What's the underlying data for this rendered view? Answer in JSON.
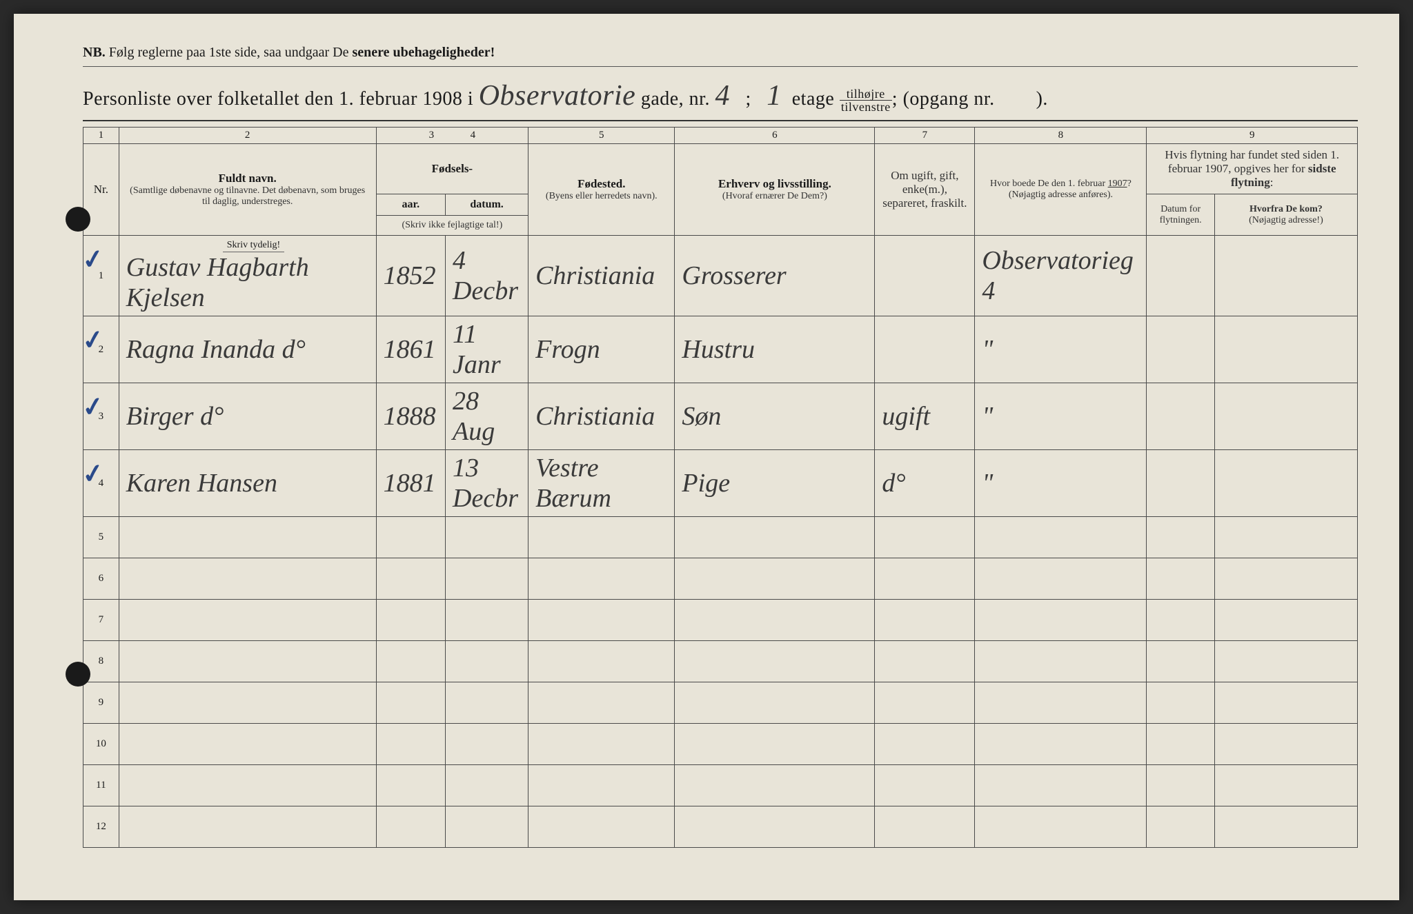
{
  "nb": {
    "prefix": "NB.",
    "text1": "Følg reglerne paa 1ste side, saa undgaar De",
    "text2": "senere ubehageligheder!"
  },
  "title": {
    "t1": "Personliste over folketallet den 1. februar 1908 i",
    "gade_hand": "Observatorie",
    "t2": "gade, nr.",
    "nr_hand": "4",
    "t3": ";",
    "etage_hand": "1",
    "t4": "etage",
    "frac_top": "tilhøjre",
    "frac_bot": "tilvenstre",
    "t5": "; (opgang nr.",
    "opgang_hand": "",
    "t6": ")."
  },
  "colnums": [
    "1",
    "2",
    "3",
    "4",
    "5",
    "6",
    "7",
    "8",
    "9"
  ],
  "headers": {
    "nr": "Nr.",
    "navn_main": "Fuldt navn.",
    "navn_sub": "(Samtlige døbenavne og tilnavne. Det døbenavn, som bruges til daglig, understreges.",
    "fodsels": "Fødsels-",
    "aar": "aar.",
    "datum": "datum.",
    "fodsels_sub": "(Skriv ikke fejlagtige tal!)",
    "fodested": "Fødested.",
    "fodested_sub": "(Byens eller herredets navn).",
    "erhverv": "Erhverv og livsstilling.",
    "erhverv_sub": "(Hvoraf ernærer De Dem?)",
    "gift": "Om ugift, gift, enke(m.), separeret, fraskilt.",
    "hvor1907": "Hvor boede De den 1. februar 1907?",
    "hvor1907_sub": "(Nøjagtig adresse anføres).",
    "flytning_top": "Hvis flytning har fundet sted siden 1. februar 1907, opgives her for sidste flytning:",
    "flyt_datum": "Datum for flytningen.",
    "hvorfra": "Hvorfra De kom?",
    "hvorfra_sub": "(Nøjagtig adresse!)",
    "skriv_tydelig": "Skriv tydelig!"
  },
  "rows": [
    {
      "nr": "1",
      "check": "✓",
      "navn": "Gustav Hagbarth Kjelsen",
      "aar": "1852",
      "datum": "4 Decbr",
      "fodested": "Christiania",
      "erhverv": "Grosserer",
      "gift": "",
      "hvor1907": "Observatorieg 4",
      "flytdatum": "",
      "hvorfra": ""
    },
    {
      "nr": "2",
      "check": "✓",
      "navn": "Ragna Inanda   d°",
      "aar": "1861",
      "datum": "11 Janr",
      "fodested": "Frogn",
      "erhverv": "Hustru",
      "gift": "",
      "hvor1907": "\"",
      "flytdatum": "",
      "hvorfra": ""
    },
    {
      "nr": "3",
      "check": "✓",
      "navn": "Birger         d°",
      "aar": "1888",
      "datum": "28 Aug",
      "fodested": "Christiania",
      "erhverv": "Søn",
      "gift": "ugift",
      "hvor1907": "\"",
      "flytdatum": "",
      "hvorfra": ""
    },
    {
      "nr": "4",
      "check": "✓",
      "navn": "Karen Hansen",
      "aar": "1881",
      "datum": "13 Decbr",
      "fodested": "Vestre Bærum",
      "erhverv": "Pige",
      "gift": "d°",
      "hvor1907": "\"",
      "flytdatum": "",
      "hvorfra": ""
    },
    {
      "nr": "5",
      "check": "",
      "navn": "",
      "aar": "",
      "datum": "",
      "fodested": "",
      "erhverv": "",
      "gift": "",
      "hvor1907": "",
      "flytdatum": "",
      "hvorfra": ""
    },
    {
      "nr": "6",
      "check": "",
      "navn": "",
      "aar": "",
      "datum": "",
      "fodested": "",
      "erhverv": "",
      "gift": "",
      "hvor1907": "",
      "flytdatum": "",
      "hvorfra": ""
    },
    {
      "nr": "7",
      "check": "",
      "navn": "",
      "aar": "",
      "datum": "",
      "fodested": "",
      "erhverv": "",
      "gift": "",
      "hvor1907": "",
      "flytdatum": "",
      "hvorfra": ""
    },
    {
      "nr": "8",
      "check": "",
      "navn": "",
      "aar": "",
      "datum": "",
      "fodested": "",
      "erhverv": "",
      "gift": "",
      "hvor1907": "",
      "flytdatum": "",
      "hvorfra": ""
    },
    {
      "nr": "9",
      "check": "",
      "navn": "",
      "aar": "",
      "datum": "",
      "fodested": "",
      "erhverv": "",
      "gift": "",
      "hvor1907": "",
      "flytdatum": "",
      "hvorfra": ""
    },
    {
      "nr": "10",
      "check": "",
      "navn": "",
      "aar": "",
      "datum": "",
      "fodested": "",
      "erhverv": "",
      "gift": "",
      "hvor1907": "",
      "flytdatum": "",
      "hvorfra": ""
    },
    {
      "nr": "11",
      "check": "",
      "navn": "",
      "aar": "",
      "datum": "",
      "fodested": "",
      "erhverv": "",
      "gift": "",
      "hvor1907": "",
      "flytdatum": "",
      "hvorfra": ""
    },
    {
      "nr": "12",
      "check": "",
      "navn": "",
      "aar": "",
      "datum": "",
      "fodested": "",
      "erhverv": "",
      "gift": "",
      "hvor1907": "",
      "flytdatum": "",
      "hvorfra": ""
    }
  ]
}
